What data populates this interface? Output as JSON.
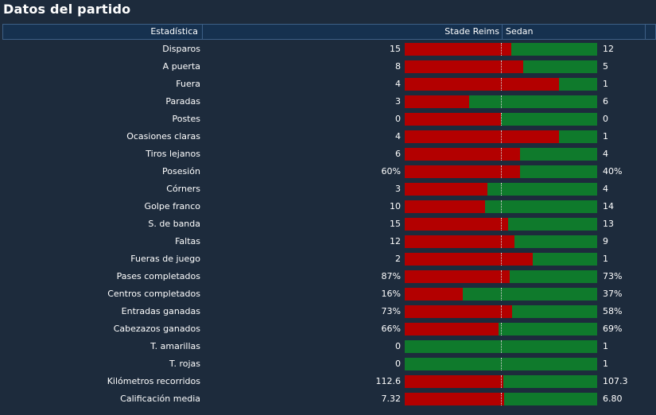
{
  "title": "Datos del partido",
  "header": {
    "stat_col": "Estadística",
    "home_team": "Stade Reims",
    "away_team": "Sedan"
  },
  "colors": {
    "home_bar": "#b30000",
    "away_bar": "#0f7a2c",
    "background": "#1d2b3c",
    "header_bg": "#16314f"
  },
  "stats": [
    {
      "label": "Disparos",
      "home": "15",
      "away": "12",
      "home_share": 0.555
    },
    {
      "label": "A puerta",
      "home": "8",
      "away": "5",
      "home_share": 0.615
    },
    {
      "label": "Fuera",
      "home": "4",
      "away": "1",
      "home_share": 0.8
    },
    {
      "label": "Paradas",
      "home": "3",
      "away": "6",
      "home_share": 0.333
    },
    {
      "label": "Postes",
      "home": "0",
      "away": "0",
      "home_share": 0.5
    },
    {
      "label": "Ocasiones claras",
      "home": "4",
      "away": "1",
      "home_share": 0.8
    },
    {
      "label": "Tiros lejanos",
      "home": "6",
      "away": "4",
      "home_share": 0.6
    },
    {
      "label": "Posesión",
      "home": "60%",
      "away": "40%",
      "home_share": 0.6
    },
    {
      "label": "Córners",
      "home": "3",
      "away": "4",
      "home_share": 0.429
    },
    {
      "label": "Golpe franco",
      "home": "10",
      "away": "14",
      "home_share": 0.417
    },
    {
      "label": "S. de banda",
      "home": "15",
      "away": "13",
      "home_share": 0.536
    },
    {
      "label": "Faltas",
      "home": "12",
      "away": "9",
      "home_share": 0.571
    },
    {
      "label": "Fueras de juego",
      "home": "2",
      "away": "1",
      "home_share": 0.667
    },
    {
      "label": "Pases completados",
      "home": "87%",
      "away": "73%",
      "home_share": 0.544
    },
    {
      "label": "Centros completados",
      "home": "16%",
      "away": "37%",
      "home_share": 0.302
    },
    {
      "label": "Entradas ganadas",
      "home": "73%",
      "away": "58%",
      "home_share": 0.557
    },
    {
      "label": "Cabezazos ganados",
      "home": "66%",
      "away": "69%",
      "home_share": 0.489
    },
    {
      "label": "T. amarillas",
      "home": "0",
      "away": "1",
      "home_share": 0.0
    },
    {
      "label": "T. rojas",
      "home": "0",
      "away": "1",
      "home_share": 0.0
    },
    {
      "label": "Kilómetros recorridos",
      "home": "112.6",
      "away": "107.3",
      "home_share": 0.512
    },
    {
      "label": "Calificación media",
      "home": "7.32",
      "away": "6.80",
      "home_share": 0.518
    }
  ]
}
